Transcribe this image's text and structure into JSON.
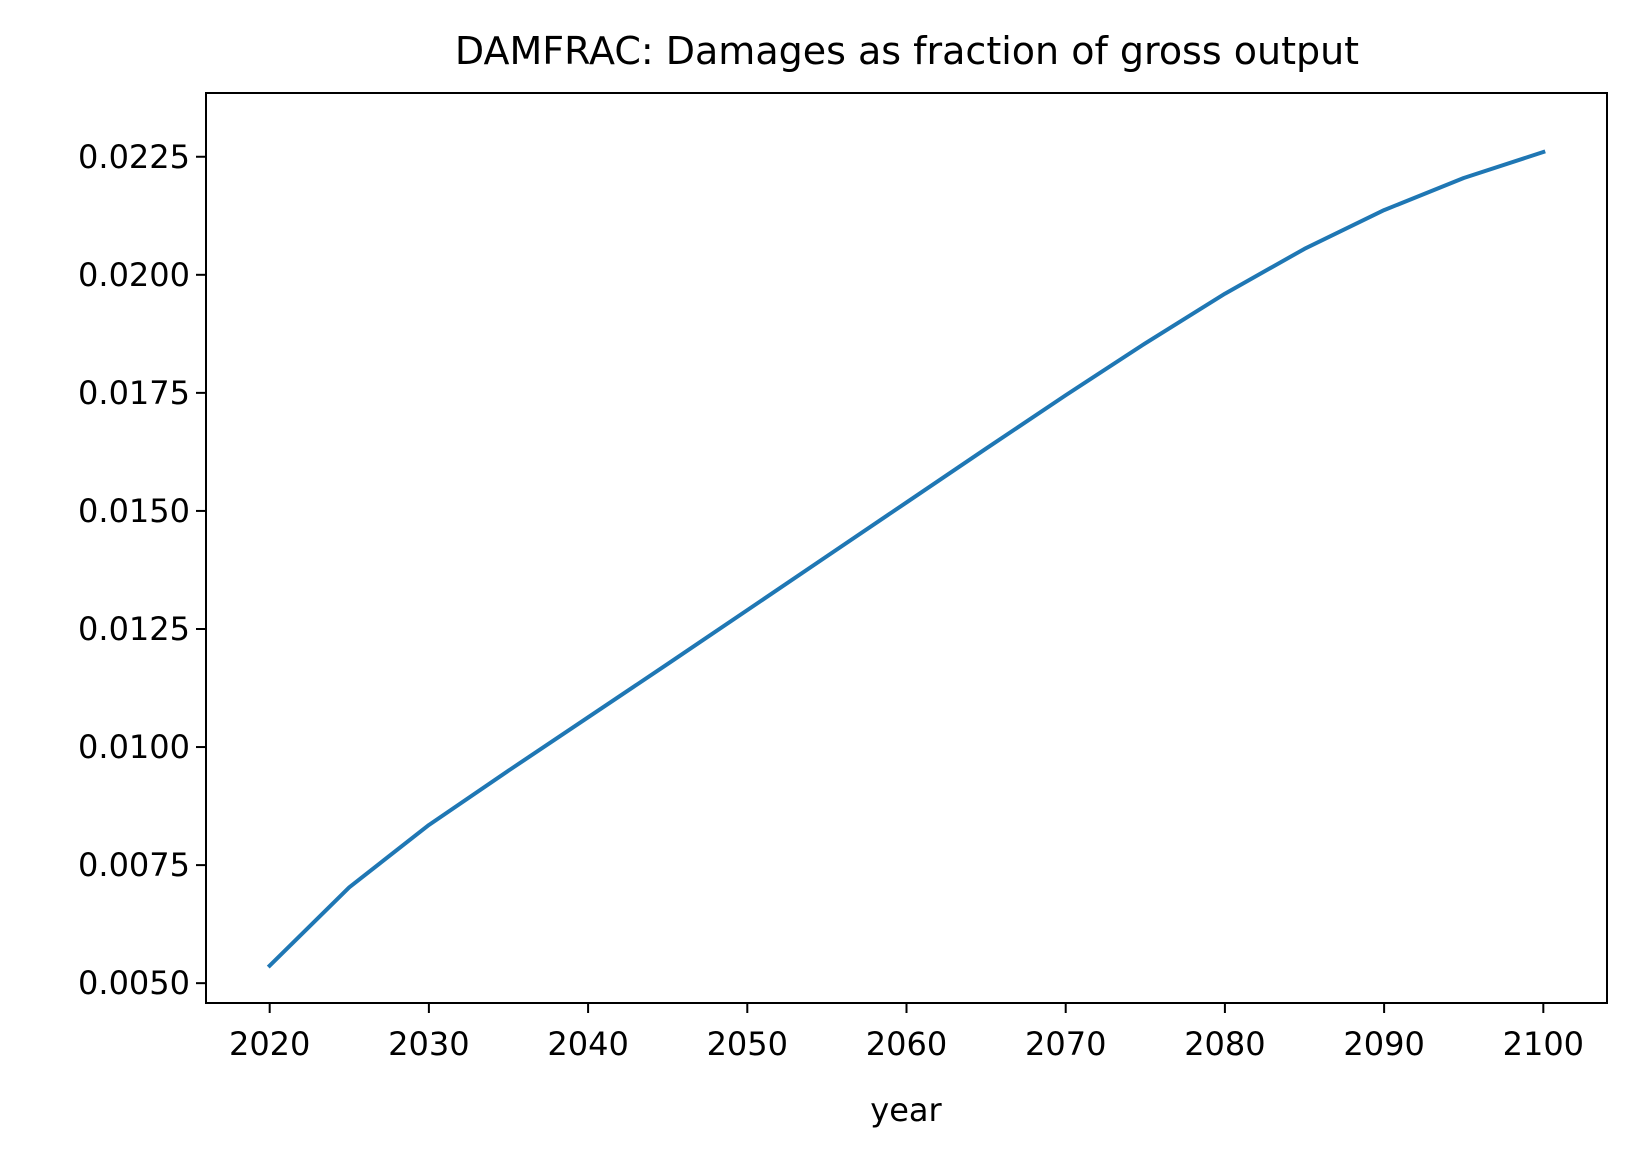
{
  "chart_data": {
    "type": "line",
    "title": "DAMFRAC: Damages as fraction of gross output",
    "xlabel": "year",
    "ylabel": "",
    "xlim": [
      2016,
      2104
    ],
    "ylim": [
      0.00458,
      0.02385
    ],
    "xticks": [
      2020,
      2030,
      2040,
      2050,
      2060,
      2070,
      2080,
      2090,
      2100
    ],
    "xtick_labels": [
      "2020",
      "2030",
      "2040",
      "2050",
      "2060",
      "2070",
      "2080",
      "2090",
      "2100"
    ],
    "yticks": [
      0.005,
      0.0075,
      0.01,
      0.0125,
      0.015,
      0.0175,
      0.02,
      0.0225
    ],
    "ytick_labels": [
      "0.0050",
      "0.0075",
      "0.0100",
      "0.0125",
      "0.0150",
      "0.0175",
      "0.0200",
      "0.0225"
    ],
    "grid": false,
    "legend": "none",
    "color": "#1f77b4",
    "series": [
      {
        "x": [
          2020,
          2025,
          2030,
          2035,
          2040,
          2045,
          2050,
          2055,
          2060,
          2065,
          2070,
          2075,
          2080,
          2085,
          2090,
          2095,
          2100
        ],
        "values": [
          0.00537,
          0.00703,
          0.00835,
          0.0095,
          0.01063,
          0.01176,
          0.0129,
          0.01404,
          0.01518,
          0.01632,
          0.01745,
          0.01855,
          0.0196,
          0.02055,
          0.02137,
          0.02205,
          0.0226
        ]
      }
    ]
  }
}
